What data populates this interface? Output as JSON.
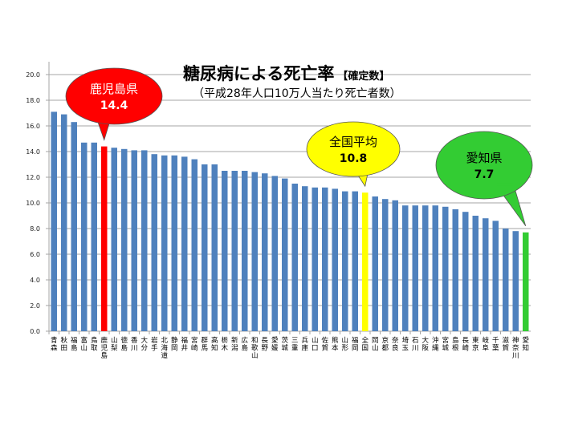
{
  "chart_data": {
    "type": "bar",
    "title": "糖尿病による死亡率",
    "title_note": "【確定数】",
    "subtitle": "（平成28年人口10万人当たり死亡者数）",
    "xlabel": "",
    "ylabel": "",
    "ylim": [
      0,
      20
    ],
    "yticks": [
      "0.0",
      "2.0",
      "4.0",
      "6.0",
      "8.0",
      "10.0",
      "12.0",
      "14.0",
      "16.0",
      "18.0",
      "20.0"
    ],
    "grid": true,
    "categories": [
      "青森",
      "秋田",
      "福島",
      "富山",
      "鳥取",
      "鹿児島",
      "山梨",
      "徳島",
      "香川",
      "大分",
      "岩手",
      "北海道",
      "静岡",
      "福井",
      "宮崎",
      "群馬",
      "高知",
      "栃木",
      "新潟",
      "広島",
      "和歌山",
      "長野",
      "愛媛",
      "茨城",
      "三重",
      "兵庫",
      "山口",
      "佐賀",
      "熊本",
      "山形",
      "福岡",
      "全国",
      "岡山",
      "京都",
      "奈良",
      "埼玉",
      "石川",
      "大阪",
      "沖縄",
      "宮城",
      "島根",
      "長崎",
      "東京",
      "岐阜",
      "千葉",
      "滋賀",
      "神奈川",
      "愛知"
    ],
    "values": [
      17.1,
      16.9,
      16.3,
      14.7,
      14.7,
      14.4,
      14.3,
      14.2,
      14.1,
      14.1,
      13.8,
      13.7,
      13.7,
      13.6,
      13.4,
      13.0,
      13.0,
      12.5,
      12.5,
      12.5,
      12.4,
      12.3,
      12.1,
      11.9,
      11.5,
      11.3,
      11.2,
      11.2,
      11.1,
      10.9,
      10.9,
      10.8,
      10.5,
      10.3,
      10.2,
      9.8,
      9.8,
      9.8,
      9.8,
      9.7,
      9.5,
      9.3,
      9.0,
      8.8,
      8.6,
      8.0,
      7.8,
      7.7
    ],
    "colors": {
      "default": "#4f81bd",
      "鹿児島": "#ff0000",
      "全国": "#ffff00",
      "愛知": "#33cc33"
    },
    "callouts": [
      {
        "category": "鹿児島",
        "label": "鹿児島県",
        "value": "14.4",
        "fill": "#ff0000",
        "text_color": "#ffffff"
      },
      {
        "category": "全国",
        "label": "全国平均",
        "value": "10.8",
        "fill": "#ffff00",
        "text_color": "#000000"
      },
      {
        "category": "愛知",
        "label": "愛知県",
        "value": "7.7",
        "fill": "#33cc33",
        "text_color": "#000000"
      }
    ]
  }
}
